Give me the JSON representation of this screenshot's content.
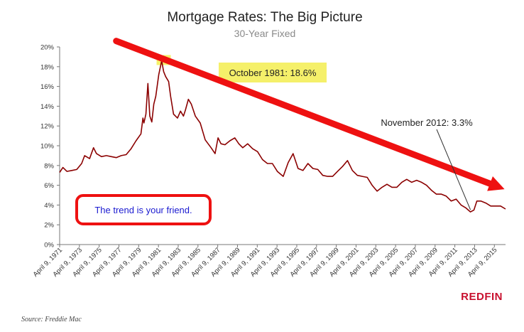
{
  "chart_data": {
    "type": "line",
    "title": "Mortgage Rates: The Big Picture",
    "subtitle": "30-Year Fixed",
    "ylim": [
      0,
      20
    ],
    "y_ticks": [
      "0%",
      "2%",
      "4%",
      "6%",
      "8%",
      "10%",
      "12%",
      "14%",
      "16%",
      "18%",
      "20%"
    ],
    "y_tick_values": [
      0,
      2,
      4,
      6,
      8,
      10,
      12,
      14,
      16,
      18,
      20
    ],
    "x_tick_labels": [
      "April 9, 1971",
      "April 9, 1973",
      "April 9, 1975",
      "April 9, 1977",
      "April 9, 1979",
      "April 9, 1981",
      "April 9, 1983",
      "April 9, 1985",
      "April 9, 1987",
      "April 9, 1989",
      "April 9, 1991",
      "April 9, 1993",
      "April 9, 1995",
      "April 9, 1997",
      "April 9, 1999",
      "April 9, 2001",
      "April 9, 2003",
      "April 9, 2005",
      "April 9, 2007",
      "April 9, 2009",
      "April 9, 2011",
      "April 9, 2013",
      "April 9, 2015"
    ],
    "x_tick_years": [
      1971.27,
      1973.27,
      1975.27,
      1977.27,
      1979.27,
      1981.27,
      1983.27,
      1985.27,
      1987.27,
      1989.27,
      1991.27,
      1993.27,
      1995.27,
      1997.27,
      1999.27,
      2001.27,
      2003.27,
      2005.27,
      2007.27,
      2009.27,
      2011.27,
      2013.27,
      2015.27
    ],
    "xlim": [
      1971.27,
      2016.4
    ],
    "grid": false,
    "series": [
      {
        "color": "#8b0000",
        "x": [
          1971.27,
          1971.6,
          1972.0,
          1972.5,
          1973.0,
          1973.5,
          1973.8,
          1974.3,
          1974.7,
          1975.0,
          1975.5,
          1976.0,
          1976.5,
          1977.0,
          1977.5,
          1978.0,
          1978.5,
          1979.0,
          1979.5,
          1979.7,
          1979.8,
          1980.0,
          1980.2,
          1980.4,
          1980.6,
          1980.8,
          1981.0,
          1981.3,
          1981.6,
          1981.8,
          1982.0,
          1982.3,
          1982.5,
          1982.8,
          1983.0,
          1983.2,
          1983.5,
          1983.8,
          1984.0,
          1984.3,
          1984.6,
          1985.0,
          1985.5,
          1986.0,
          1986.3,
          1986.6,
          1987.0,
          1987.3,
          1987.6,
          1988.0,
          1988.5,
          1989.0,
          1989.4,
          1989.8,
          1990.3,
          1990.8,
          1991.3,
          1991.8,
          1992.3,
          1992.8,
          1993.3,
          1993.9,
          1994.4,
          1994.9,
          1995.4,
          1995.9,
          1996.4,
          1996.9,
          1997.4,
          1997.9,
          1998.4,
          1998.9,
          1999.4,
          1999.9,
          2000.4,
          2000.9,
          2001.4,
          2001.9,
          2002.4,
          2002.9,
          2003.4,
          2003.9,
          2004.4,
          2004.9,
          2005.4,
          2005.9,
          2006.4,
          2006.9,
          2007.4,
          2007.9,
          2008.4,
          2008.9,
          2009.4,
          2009.9,
          2010.4,
          2010.9,
          2011.4,
          2011.9,
          2012.4,
          2012.85,
          2013.2,
          2013.5,
          2013.9,
          2014.4,
          2014.9,
          2015.4,
          2015.9,
          2016.4
        ],
        "values": [
          7.3,
          7.8,
          7.4,
          7.5,
          7.6,
          8.2,
          9.0,
          8.7,
          9.8,
          9.2,
          8.9,
          9.0,
          8.9,
          8.8,
          9.0,
          9.1,
          9.7,
          10.5,
          11.2,
          12.8,
          12.3,
          13.2,
          16.3,
          13.0,
          12.4,
          14.2,
          15.0,
          17.2,
          18.6,
          17.5,
          17.0,
          16.5,
          15.0,
          13.2,
          13.0,
          12.8,
          13.5,
          13.0,
          13.6,
          14.7,
          14.2,
          13.0,
          12.3,
          10.6,
          10.2,
          9.8,
          9.2,
          10.8,
          10.2,
          10.1,
          10.5,
          10.8,
          10.2,
          9.8,
          10.2,
          9.7,
          9.4,
          8.6,
          8.2,
          8.2,
          7.4,
          6.9,
          8.3,
          9.2,
          7.7,
          7.5,
          8.2,
          7.7,
          7.6,
          7.0,
          6.9,
          6.9,
          7.4,
          7.9,
          8.5,
          7.5,
          7.0,
          6.9,
          6.8,
          6.0,
          5.4,
          5.8,
          6.1,
          5.8,
          5.8,
          6.3,
          6.6,
          6.3,
          6.5,
          6.3,
          6.0,
          5.5,
          5.1,
          5.1,
          4.9,
          4.4,
          4.6,
          4.0,
          3.7,
          3.3,
          3.5,
          4.4,
          4.4,
          4.2,
          3.9,
          3.9,
          3.9,
          3.6
        ]
      }
    ],
    "annotations": {
      "peak_label": "October 1981: 18.6%",
      "low_label": "November 2012: 3.3%",
      "trend_label": "The trend is your friend.",
      "peak_x": 1981.8,
      "peak_y": 18.6,
      "low_x": 2012.85,
      "low_y": 3.3
    },
    "trend_arrow": {
      "from_x": 1977.0,
      "from_y": 20.6,
      "to_x": 2016.3,
      "to_y": 5.6,
      "color": "#ee1111"
    },
    "highlight_color": "#f5f06a"
  },
  "source": "Source: Freddie Mac",
  "brand": "REDFIN"
}
